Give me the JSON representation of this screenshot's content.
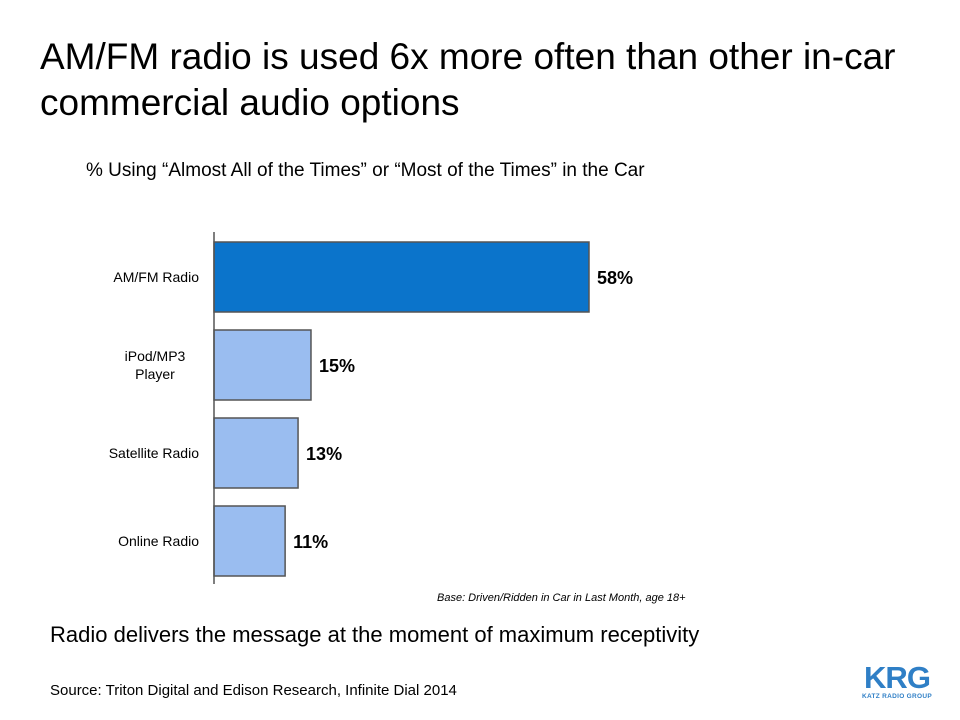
{
  "title": "AM/FM radio is used 6x more often than other in-car commercial audio options",
  "chart_data": {
    "type": "bar",
    "orientation": "horizontal",
    "title": "% Using “Almost All of the Times” or “Most of the Times” in the Car",
    "categories": [
      "AM/FM Radio",
      "iPod/MP3 Player",
      "Satellite Radio",
      "Online Radio"
    ],
    "values": [
      58,
      15,
      13,
      11
    ],
    "value_labels": [
      "58%",
      "15%",
      "13%",
      "11%"
    ],
    "xlim": [
      0,
      60
    ],
    "grid": false,
    "legend": "none",
    "colors": {
      "highlight": "#0B74CB",
      "default": "#9ABDF0",
      "outline": "#555555"
    }
  },
  "base_note": "Base: Driven/Ridden in Car in Last Month, age 18+",
  "tagline": "Radio delivers the message at the moment of maximum receptivity",
  "source": "Source: Triton Digital and Edison Research, Infinite Dial 2014",
  "logo": {
    "letters": "KRG",
    "subtitle": "KATZ RADIO GROUP"
  }
}
